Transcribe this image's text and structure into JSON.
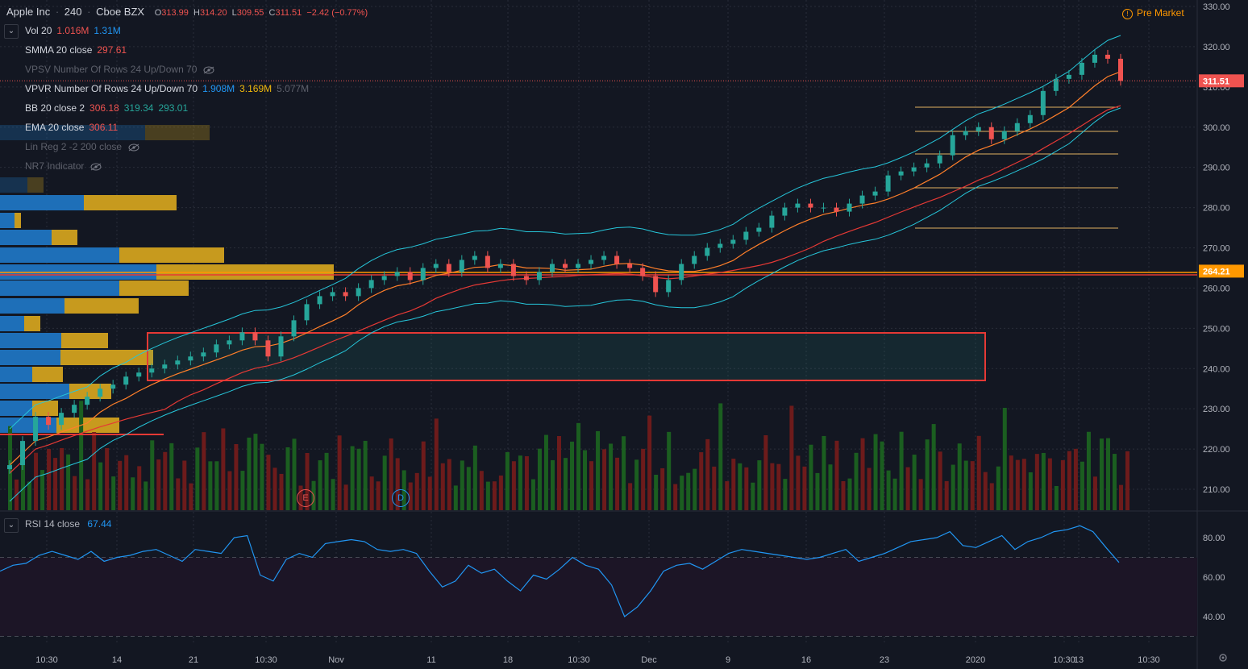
{
  "header": {
    "symbol": "Apple Inc",
    "interval": "240",
    "exchange": "Cboe BZX",
    "open_label": "O",
    "open": "313.99",
    "high_label": "H",
    "high": "314.20",
    "low_label": "L",
    "low": "309.55",
    "close_label": "C",
    "close": "311.51",
    "change": "−2.42 (−0.77%)",
    "pre_market": "Pre Market"
  },
  "indicators": [
    {
      "name": "Vol 20",
      "v1": "1.016M",
      "v2": "1.31M",
      "hidden": false
    },
    {
      "name": "SMMA 20 close",
      "v1": "297.61",
      "hidden": false
    },
    {
      "name": "VPSV Number Of Rows 24 Up/Down 70",
      "hidden": true
    },
    {
      "name": "VPVR Number Of Rows 24 Up/Down 70",
      "v1": "1.908M",
      "v2": "3.169M",
      "v3": "5.077M",
      "hidden": false
    },
    {
      "name": "BB 20 close 2",
      "v1": "306.18",
      "v2": "319.34",
      "v3": "293.01",
      "hidden": false
    },
    {
      "name": "EMA 20 close",
      "v1": "306.11",
      "hidden": false
    },
    {
      "name": "Lin Reg 2 -2 200 close",
      "hidden": true
    },
    {
      "name": "NR7 Indicator",
      "hidden": true
    }
  ],
  "rsi": {
    "label": "RSI 14 close",
    "value": "67.44",
    "ticks": [
      "80.00",
      "60.00",
      "40.00"
    ]
  },
  "price_axis": {
    "ticks": [
      "330.00",
      "320.00",
      "310.00",
      "300.00",
      "290.00",
      "280.00",
      "270.00",
      "260.00",
      "250.00",
      "240.00",
      "230.00",
      "220.00",
      "210.00"
    ],
    "last_price": "311.51",
    "level_price": "264.21"
  },
  "time_axis": {
    "ticks": [
      "10:30",
      "14",
      "21",
      "10:30",
      "Nov",
      "11",
      "18",
      "10:30",
      "Dec",
      "9",
      "16",
      "23",
      "2020",
      "10:30",
      "13",
      "10:30"
    ]
  },
  "events": [
    {
      "label": "E"
    },
    {
      "label": "D"
    }
  ],
  "colors": {
    "up": "#26a69a",
    "down": "#ef5350",
    "bg": "#131722",
    "grid": "#2a2e39",
    "ema": "#ff7f2a",
    "smma": "#e53935",
    "bb": "#26c6da",
    "rsi": "#2196f3",
    "vol_up": "#1b5e20",
    "vol_down": "#6d1b1b",
    "vp_up": "#1e6fb8",
    "vp_down": "#c79a1e",
    "level": "#ff9800",
    "box": "#e53935"
  },
  "chart_data": {
    "type": "candlestick",
    "symbol": "Apple Inc",
    "ylim": [
      205,
      332
    ],
    "close_approx": [
      216,
      222,
      228,
      226,
      229,
      231,
      233,
      235,
      236,
      238,
      239,
      240,
      241,
      242,
      243,
      244,
      246,
      247,
      249,
      247,
      243,
      248,
      252,
      256,
      258,
      259,
      258,
      260,
      262,
      263,
      264,
      262,
      265,
      266,
      264,
      267,
      268,
      265,
      266,
      263,
      262,
      264,
      266,
      265,
      266,
      267,
      268,
      266,
      265,
      263,
      259,
      262,
      266,
      268,
      270,
      271,
      272,
      274,
      275,
      278,
      280,
      281,
      280,
      280,
      279,
      281,
      283,
      284,
      288,
      289,
      290,
      291,
      293,
      298,
      299,
      300,
      297,
      299,
      301,
      303,
      309,
      312,
      313,
      316,
      318,
      317,
      311.51
    ],
    "rsi_approx": [
      63,
      66,
      67,
      71,
      73,
      71,
      69,
      73,
      68,
      70,
      71,
      73,
      74,
      71,
      68,
      74,
      73,
      72,
      80,
      81,
      61,
      58,
      69,
      72,
      70,
      77,
      78,
      79,
      78,
      74,
      73,
      74,
      72,
      63,
      55,
      58,
      66,
      62,
      64,
      58,
      53,
      61,
      59,
      64,
      70,
      66,
      64,
      56,
      40,
      45,
      53,
      63,
      66,
      67,
      64,
      68,
      72,
      74,
      73,
      72,
      71,
      70,
      69,
      70,
      72,
      74,
      68,
      70,
      72,
      75,
      78,
      79,
      80,
      83,
      76,
      75,
      78,
      81,
      74,
      78,
      80,
      83,
      84,
      86,
      83,
      75,
      67.44
    ]
  }
}
